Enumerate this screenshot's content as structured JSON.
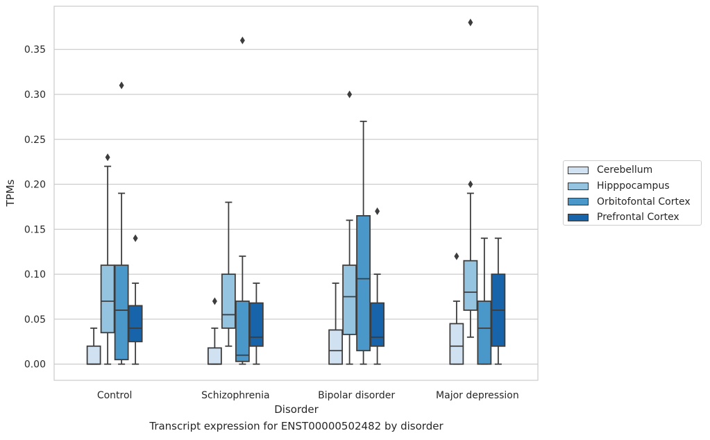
{
  "chart_data": {
    "type": "box",
    "xlabel": "Disorder",
    "ylabel": "TPMs",
    "categories": [
      "Control",
      "Schizophrenia",
      "Bipolar disorder",
      "Major depression"
    ],
    "ylim": [
      -0.018,
      0.398
    ],
    "yticks": [
      "0.00",
      "0.05",
      "0.10",
      "0.15",
      "0.20",
      "0.25",
      "0.30",
      "0.35"
    ],
    "grid": "horizontal",
    "legend_position": "right",
    "series": [
      {
        "name": "Cerebellum",
        "color": "#d0e1f2",
        "boxes": [
          {
            "whislo": 0.0,
            "q1": 0.0,
            "med": 0.0,
            "q3": 0.02,
            "whishi": 0.04,
            "fliers": []
          },
          {
            "whislo": 0.0,
            "q1": 0.0,
            "med": 0.0,
            "q3": 0.018,
            "whishi": 0.04,
            "fliers": [
              0.07
            ]
          },
          {
            "whislo": 0.0,
            "q1": 0.0,
            "med": 0.015,
            "q3": 0.038,
            "whishi": 0.09,
            "fliers": []
          },
          {
            "whislo": 0.0,
            "q1": 0.0,
            "med": 0.02,
            "q3": 0.045,
            "whishi": 0.07,
            "fliers": [
              0.12
            ]
          }
        ]
      },
      {
        "name": "Hipppocampus",
        "color": "#94c4df",
        "boxes": [
          {
            "whislo": 0.0,
            "q1": 0.035,
            "med": 0.07,
            "q3": 0.11,
            "whishi": 0.22,
            "fliers": [
              0.23
            ]
          },
          {
            "whislo": 0.02,
            "q1": 0.04,
            "med": 0.055,
            "q3": 0.1,
            "whishi": 0.18,
            "fliers": []
          },
          {
            "whislo": 0.0,
            "q1": 0.033,
            "med": 0.075,
            "q3": 0.11,
            "whishi": 0.16,
            "fliers": [
              0.3
            ]
          },
          {
            "whislo": 0.03,
            "q1": 0.06,
            "med": 0.08,
            "q3": 0.115,
            "whishi": 0.19,
            "fliers": [
              0.2,
              0.38
            ]
          }
        ]
      },
      {
        "name": "Orbitofontal Cortex",
        "color": "#4a98c9",
        "boxes": [
          {
            "whislo": 0.0,
            "q1": 0.005,
            "med": 0.06,
            "q3": 0.11,
            "whishi": 0.19,
            "fliers": [
              0.31
            ]
          },
          {
            "whislo": 0.0,
            "q1": 0.003,
            "med": 0.01,
            "q3": 0.07,
            "whishi": 0.12,
            "fliers": [
              0.36
            ]
          },
          {
            "whislo": 0.0,
            "q1": 0.015,
            "med": 0.095,
            "q3": 0.165,
            "whishi": 0.27,
            "fliers": []
          },
          {
            "whislo": 0.0,
            "q1": 0.0,
            "med": 0.04,
            "q3": 0.07,
            "whishi": 0.14,
            "fliers": []
          }
        ]
      },
      {
        "name": "Prefrontal Cortex",
        "color": "#1764ab",
        "boxes": [
          {
            "whislo": 0.0,
            "q1": 0.025,
            "med": 0.04,
            "q3": 0.065,
            "whishi": 0.09,
            "fliers": [
              0.14
            ]
          },
          {
            "whislo": 0.0,
            "q1": 0.02,
            "med": 0.03,
            "q3": 0.068,
            "whishi": 0.09,
            "fliers": []
          },
          {
            "whislo": 0.0,
            "q1": 0.02,
            "med": 0.03,
            "q3": 0.068,
            "whishi": 0.1,
            "fliers": [
              0.17
            ]
          },
          {
            "whislo": 0.0,
            "q1": 0.02,
            "med": 0.06,
            "q3": 0.1,
            "whishi": 0.14,
            "fliers": []
          }
        ]
      }
    ]
  },
  "caption": "Transcript expression for ENST00000502482 by disorder"
}
